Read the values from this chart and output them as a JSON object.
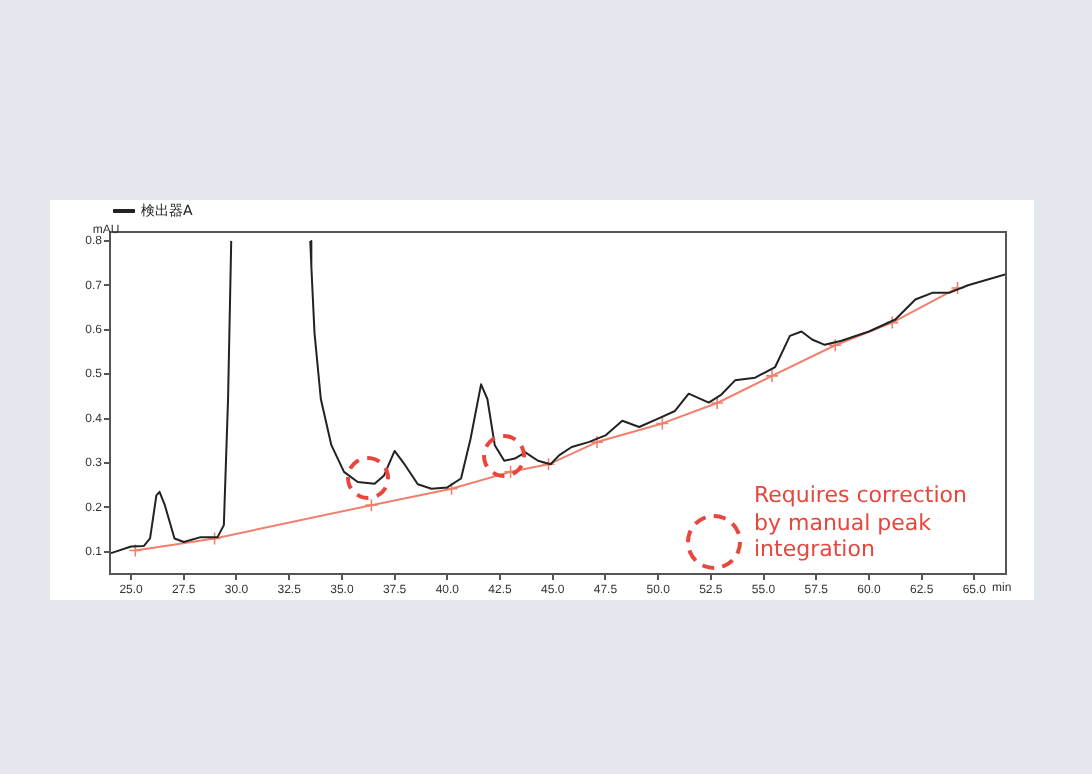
{
  "chart_data": {
    "type": "line",
    "ylabel": "mAU",
    "xlabel": "min",
    "xlim": [
      24,
      66.5
    ],
    "ylim": [
      0.05,
      0.82
    ],
    "xticks": [
      {
        "value": 25,
        "label": "25.0"
      },
      {
        "value": 27.5,
        "label": "27.5"
      },
      {
        "value": 30,
        "label": "30.0"
      },
      {
        "value": 32.5,
        "label": "32.5"
      },
      {
        "value": 35,
        "label": "35.0"
      },
      {
        "value": 37.5,
        "label": "37.5"
      },
      {
        "value": 40,
        "label": "40.0"
      },
      {
        "value": 42.5,
        "label": "42.5"
      },
      {
        "value": 45,
        "label": "45.0"
      },
      {
        "value": 47.5,
        "label": "47.5"
      },
      {
        "value": 50,
        "label": "50.0"
      },
      {
        "value": 52.5,
        "label": "52.5"
      },
      {
        "value": 55,
        "label": "55.0"
      },
      {
        "value": 57.5,
        "label": "57.5"
      },
      {
        "value": 60,
        "label": "60.0"
      },
      {
        "value": 62.5,
        "label": "62.5"
      },
      {
        "value": 65,
        "label": "65.0"
      }
    ],
    "yticks": [
      0.1,
      0.2,
      0.3,
      0.4,
      0.5,
      0.6,
      0.7,
      0.8
    ],
    "grid": false,
    "legend": "top left",
    "series": [
      {
        "name": "検出器A",
        "color": "#222222",
        "marker": "none",
        "x": [
          24.05,
          25.0,
          25.6,
          25.9,
          26.2,
          26.35,
          26.6,
          27.06,
          27.5,
          28.3,
          29.1,
          29.4,
          29.6,
          29.75,
          31.5,
          33.5,
          33.55,
          33.7,
          34.0,
          34.5,
          35.1,
          35.75,
          36.55,
          37.0,
          37.5,
          38.0,
          38.6,
          39.25,
          40.0,
          40.65,
          41.1,
          41.6,
          41.9,
          42.25,
          42.7,
          43.2,
          43.7,
          44.3,
          44.9,
          45.3,
          45.9,
          46.7,
          47.5,
          48.3,
          49.1,
          50.0,
          50.8,
          51.45,
          52.4,
          53.0,
          53.65,
          54.6,
          55.55,
          56.25,
          56.8,
          57.3,
          57.9,
          58.7,
          60.0,
          61.25,
          62.2,
          63.0,
          63.8,
          64.7,
          66.5
        ],
        "values": [
          0.097,
          0.112,
          0.113,
          0.13,
          0.227,
          0.235,
          0.205,
          0.13,
          0.122,
          0.133,
          0.133,
          0.16,
          0.444,
          0.8,
          null,
          0.8,
          0.743,
          0.593,
          0.444,
          0.34,
          0.28,
          0.257,
          0.253,
          0.272,
          0.327,
          0.295,
          0.252,
          0.242,
          0.245,
          0.265,
          0.354,
          0.477,
          0.444,
          0.34,
          0.305,
          0.31,
          0.324,
          0.305,
          0.297,
          0.317,
          0.336,
          0.347,
          0.362,
          0.395,
          0.381,
          0.4,
          0.417,
          0.456,
          0.436,
          0.454,
          0.486,
          0.492,
          0.516,
          0.586,
          0.596,
          0.578,
          0.566,
          0.575,
          0.596,
          0.623,
          0.668,
          0.683,
          0.683,
          0.7,
          0.725
        ]
      },
      {
        "color": "#f07f6c",
        "marker": "cross",
        "x": [
          25.2,
          28.96,
          36.4,
          40.2,
          43.0,
          44.8,
          47.1,
          50.2,
          52.8,
          55.4,
          58.4,
          61.1,
          64.2
        ],
        "values": [
          0.103,
          0.13,
          0.205,
          0.242,
          0.28,
          0.297,
          0.347,
          0.389,
          0.435,
          0.496,
          0.565,
          0.616,
          0.694
        ]
      }
    ],
    "annotations": [
      "Requires correction by manual peak integration"
    ]
  }
}
